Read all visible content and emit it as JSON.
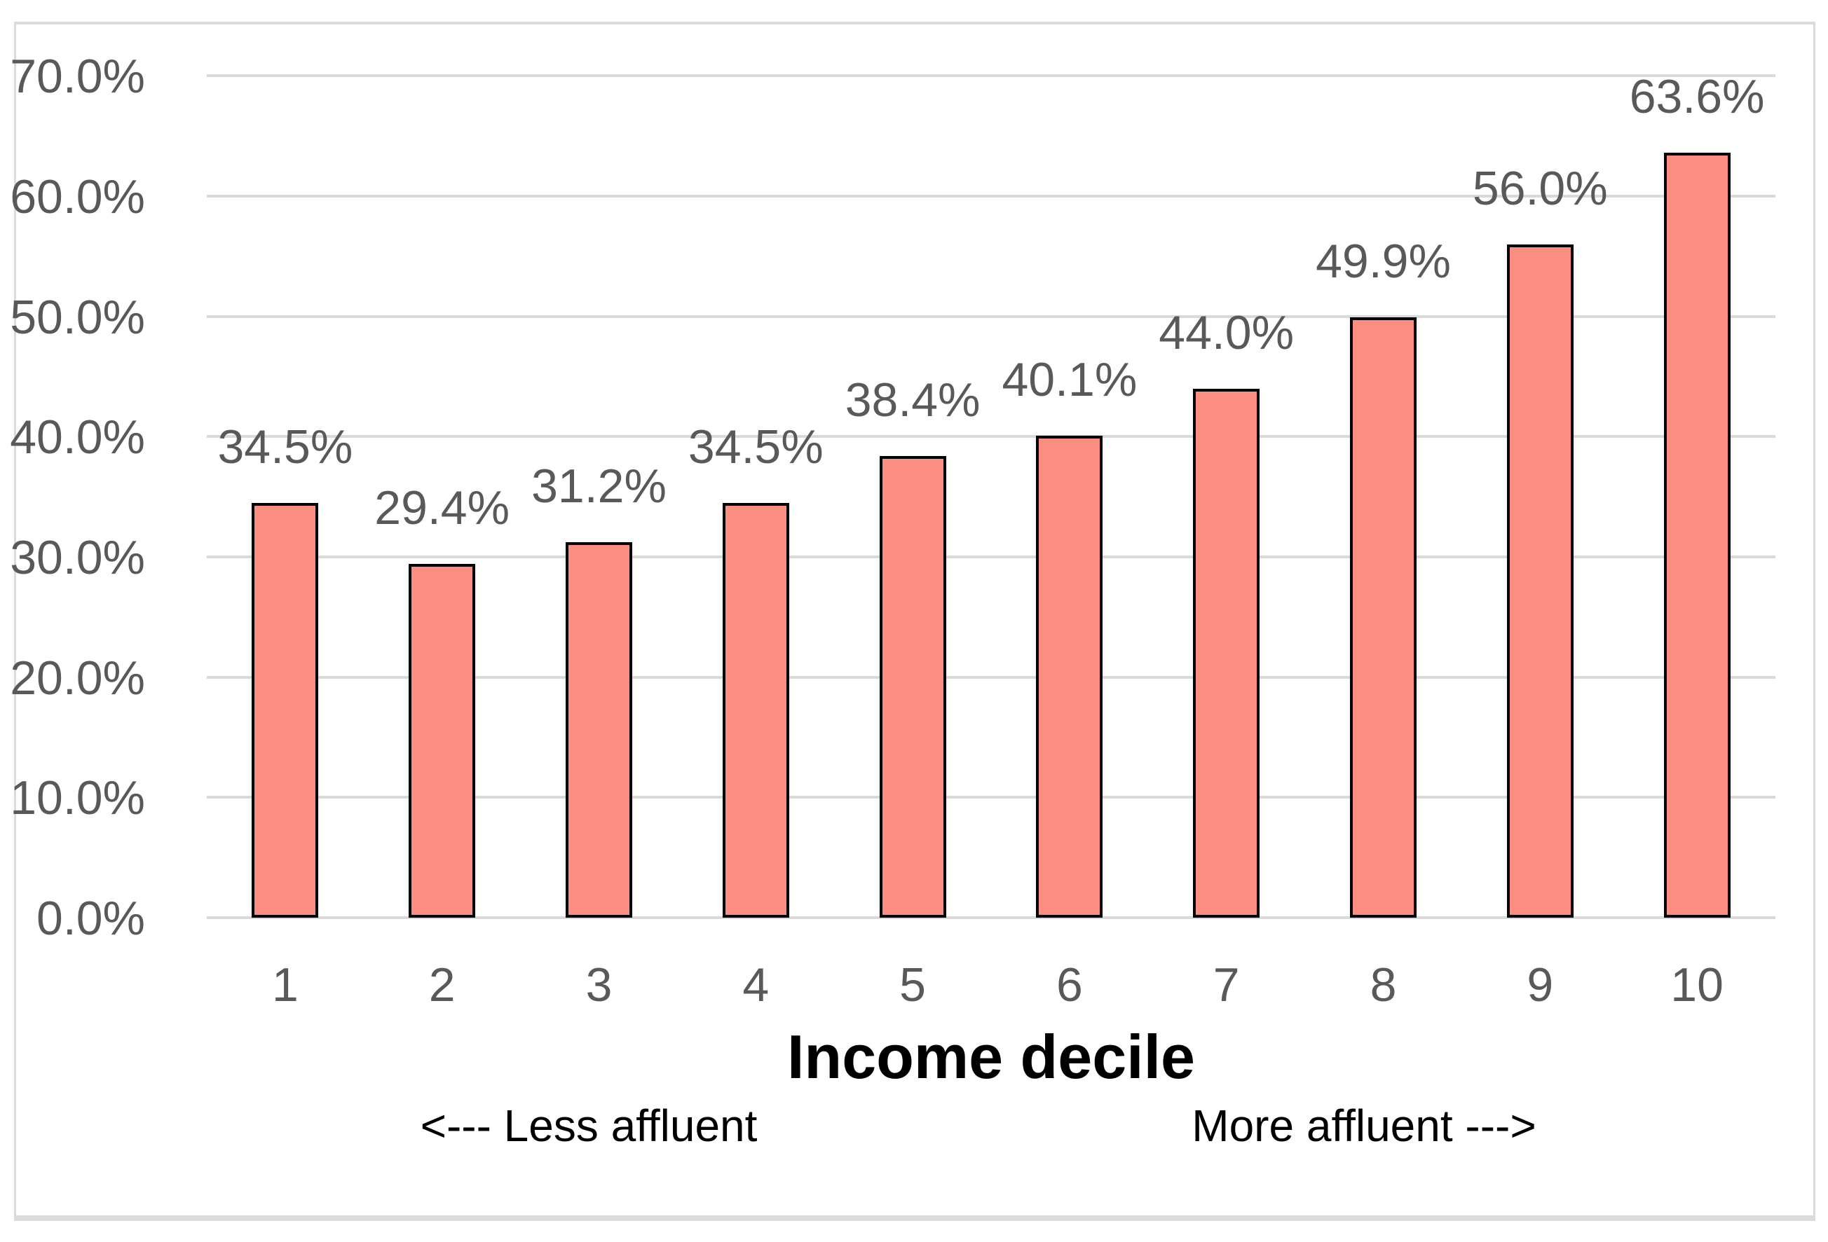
{
  "chart_data": {
    "type": "bar",
    "categories": [
      "1",
      "2",
      "3",
      "4",
      "5",
      "6",
      "7",
      "8",
      "9",
      "10"
    ],
    "values": [
      34.5,
      29.4,
      31.2,
      34.5,
      38.4,
      40.1,
      44.0,
      49.9,
      56.0,
      63.6
    ],
    "value_labels": [
      "34.5%",
      "29.4%",
      "31.2%",
      "34.5%",
      "38.4%",
      "40.1%",
      "44.0%",
      "49.9%",
      "56.0%",
      "63.6%"
    ],
    "title": "",
    "xlabel": "Income decile",
    "ylabel": "",
    "ylim": [
      0,
      70
    ],
    "y_tick_values": [
      0,
      10,
      20,
      30,
      40,
      50,
      60,
      70
    ],
    "y_tick_labels": [
      "0.0%",
      "10.0%",
      "20.0%",
      "30.0%",
      "40.0%",
      "50.0%",
      "60.0%",
      "70.0%"
    ],
    "grid": true,
    "legend": "none",
    "annotations": {
      "left": "<--- Less affluent",
      "right": "More affluent --->"
    },
    "colors": {
      "bar_fill": "#FB8D81",
      "bar_border": "#000000",
      "gridline": "#D9D9D9",
      "tick_label": "#595959",
      "frame_border": "#DBDBDB",
      "title_color": "#000000",
      "annotation_color": "#000000"
    }
  }
}
